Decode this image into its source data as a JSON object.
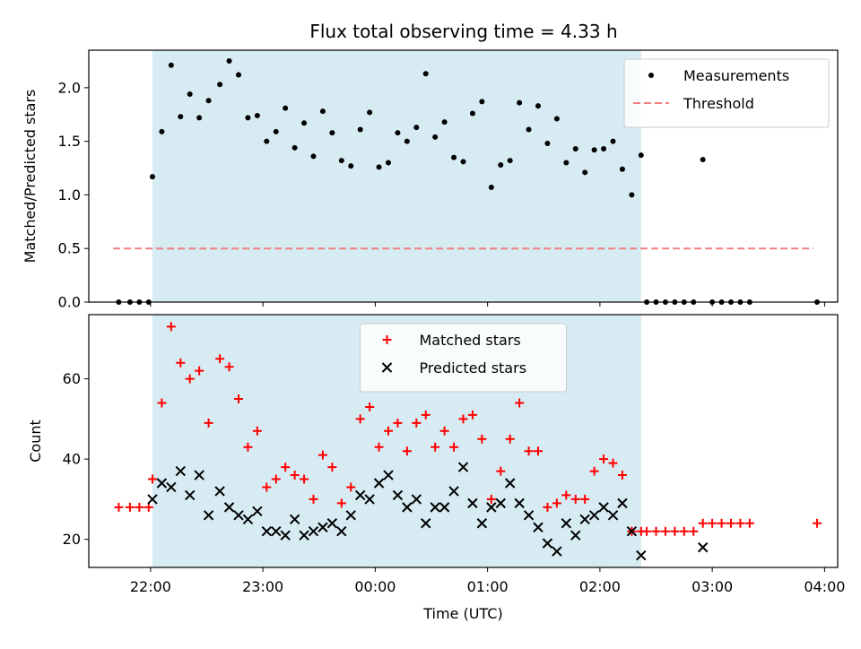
{
  "chart_data": [
    {
      "type": "scatter",
      "title": "Flux total observing time = 4.33 h",
      "xlabel": "",
      "ylabel": "Matched/Predicted stars",
      "ylim": [
        0,
        2.35
      ],
      "yticks": [
        0.0,
        0.5,
        1.0,
        1.5,
        2.0
      ],
      "ytick_labels": [
        "0.0",
        "0.5",
        "1.0",
        "1.5",
        "2.0"
      ],
      "xlim": [
        "21:27",
        "04:07"
      ],
      "xticks": [
        "22:00",
        "23:00",
        "00:00",
        "01:00",
        "02:00",
        "03:00",
        "04:00"
      ],
      "shaded_span": [
        "22:01",
        "02:22"
      ],
      "legend_placement": "top-right",
      "series": [
        {
          "name": "Measurements",
          "style": "dot",
          "color": "#000000",
          "x": [
            "21:43",
            "21:49",
            "21:54",
            "21:59",
            "22:01",
            "22:06",
            "22:11",
            "22:16",
            "22:21",
            "22:26",
            "22:31",
            "22:37",
            "22:42",
            "22:47",
            "22:52",
            "22:57",
            "23:02",
            "23:07",
            "23:12",
            "23:17",
            "23:22",
            "23:27",
            "23:32",
            "23:37",
            "23:42",
            "23:47",
            "23:52",
            "23:57",
            "00:02",
            "00:07",
            "00:12",
            "00:17",
            "00:22",
            "00:27",
            "00:32",
            "00:37",
            "00:42",
            "00:47",
            "00:52",
            "00:57",
            "01:02",
            "01:07",
            "01:12",
            "01:17",
            "01:22",
            "01:27",
            "01:32",
            "01:37",
            "01:42",
            "01:47",
            "01:52",
            "01:57",
            "02:02",
            "02:07",
            "02:12",
            "02:17",
            "02:22",
            "02:25",
            "02:30",
            "02:35",
            "02:40",
            "02:45",
            "02:50",
            "02:55",
            "03:00",
            "03:05",
            "03:10",
            "03:15",
            "03:20",
            "03:56"
          ],
          "y": [
            0,
            0,
            0,
            0,
            1.17,
            1.59,
            2.21,
            1.73,
            1.94,
            1.72,
            1.88,
            2.03,
            2.25,
            2.12,
            1.72,
            1.74,
            1.5,
            1.59,
            1.81,
            1.44,
            1.67,
            1.36,
            1.78,
            1.58,
            1.32,
            1.27,
            1.61,
            1.77,
            1.26,
            1.3,
            1.58,
            1.5,
            1.63,
            2.13,
            1.54,
            1.68,
            1.35,
            1.31,
            1.76,
            1.87,
            1.07,
            1.28,
            1.32,
            1.86,
            1.61,
            1.83,
            1.48,
            1.71,
            1.3,
            1.43,
            1.21,
            1.42,
            1.43,
            1.5,
            1.24,
            1.0,
            1.37,
            0,
            0,
            0,
            0,
            0,
            0,
            1.33,
            0,
            0,
            0,
            0,
            0,
            0
          ]
        },
        {
          "name": "Threshold",
          "style": "dashed-line",
          "color": "#f08080",
          "x": [
            "21:40",
            "03:54"
          ],
          "y": [
            0.5,
            0.5
          ]
        }
      ]
    },
    {
      "type": "scatter",
      "title": "",
      "xlabel": "Time (UTC)",
      "ylabel": "Count",
      "ylim": [
        13,
        76
      ],
      "yticks": [
        20,
        40,
        60
      ],
      "ytick_labels": [
        "20",
        "40",
        "60"
      ],
      "xlim": [
        "21:27",
        "04:07"
      ],
      "xticks": [
        "22:00",
        "23:00",
        "00:00",
        "01:00",
        "02:00",
        "03:00",
        "04:00"
      ],
      "xtick_labels": [
        "22:00",
        "23:00",
        "00:00",
        "01:00",
        "02:00",
        "03:00",
        "04:00"
      ],
      "shaded_span": [
        "22:01",
        "02:22"
      ],
      "legend_placement": "top-center",
      "series": [
        {
          "name": "Matched stars",
          "style": "plus",
          "color": "#ff0000",
          "x": [
            "21:43",
            "21:49",
            "21:54",
            "21:59",
            "22:01",
            "22:06",
            "22:11",
            "22:16",
            "22:21",
            "22:26",
            "22:31",
            "22:37",
            "22:42",
            "22:47",
            "22:52",
            "22:57",
            "23:02",
            "23:07",
            "23:12",
            "23:17",
            "23:22",
            "23:27",
            "23:32",
            "23:37",
            "23:42",
            "23:47",
            "23:52",
            "23:57",
            "00:02",
            "00:07",
            "00:12",
            "00:17",
            "00:22",
            "00:27",
            "00:32",
            "00:37",
            "00:42",
            "00:47",
            "00:52",
            "00:57",
            "01:02",
            "01:07",
            "01:12",
            "01:17",
            "01:22",
            "01:27",
            "01:32",
            "01:37",
            "01:42",
            "01:47",
            "01:52",
            "01:57",
            "02:02",
            "02:07",
            "02:12",
            "02:17",
            "02:22",
            "02:25",
            "02:30",
            "02:35",
            "02:40",
            "02:45",
            "02:50",
            "02:55",
            "03:00",
            "03:05",
            "03:10",
            "03:15",
            "03:20",
            "03:56"
          ],
          "y": [
            28,
            28,
            28,
            28,
            35,
            54,
            73,
            64,
            60,
            62,
            49,
            65,
            63,
            55,
            43,
            47,
            33,
            35,
            38,
            36,
            35,
            30,
            41,
            38,
            29,
            33,
            50,
            53,
            43,
            47,
            49,
            42,
            49,
            51,
            43,
            47,
            43,
            50,
            51,
            45,
            30,
            37,
            45,
            54,
            42,
            42,
            28,
            29,
            31,
            30,
            30,
            37,
            40,
            39,
            36,
            22,
            22,
            22,
            22,
            22,
            22,
            22,
            22,
            24,
            24,
            24,
            24,
            24,
            24,
            24
          ]
        },
        {
          "name": "Predicted stars",
          "style": "x",
          "color": "#000000",
          "x": [
            "22:01",
            "22:06",
            "22:11",
            "22:16",
            "22:21",
            "22:26",
            "22:31",
            "22:37",
            "22:42",
            "22:47",
            "22:52",
            "22:57",
            "23:02",
            "23:07",
            "23:12",
            "23:17",
            "23:22",
            "23:27",
            "23:32",
            "23:37",
            "23:42",
            "23:47",
            "23:52",
            "23:57",
            "00:02",
            "00:07",
            "00:12",
            "00:17",
            "00:22",
            "00:27",
            "00:32",
            "00:37",
            "00:42",
            "00:47",
            "00:52",
            "00:57",
            "01:02",
            "01:07",
            "01:12",
            "01:17",
            "01:22",
            "01:27",
            "01:32",
            "01:37",
            "01:42",
            "01:47",
            "01:52",
            "01:57",
            "02:02",
            "02:07",
            "02:12",
            "02:17",
            "02:22",
            "02:55"
          ],
          "y": [
            30,
            34,
            33,
            37,
            31,
            36,
            26,
            32,
            28,
            26,
            25,
            27,
            22,
            22,
            21,
            25,
            21,
            22,
            23,
            24,
            22,
            26,
            31,
            30,
            34,
            36,
            31,
            28,
            30,
            24,
            28,
            28,
            32,
            38,
            29,
            24,
            28,
            29,
            34,
            29,
            26,
            23,
            19,
            17,
            24,
            21,
            25,
            26,
            28,
            26,
            29,
            22,
            16,
            18
          ]
        }
      ]
    }
  ]
}
